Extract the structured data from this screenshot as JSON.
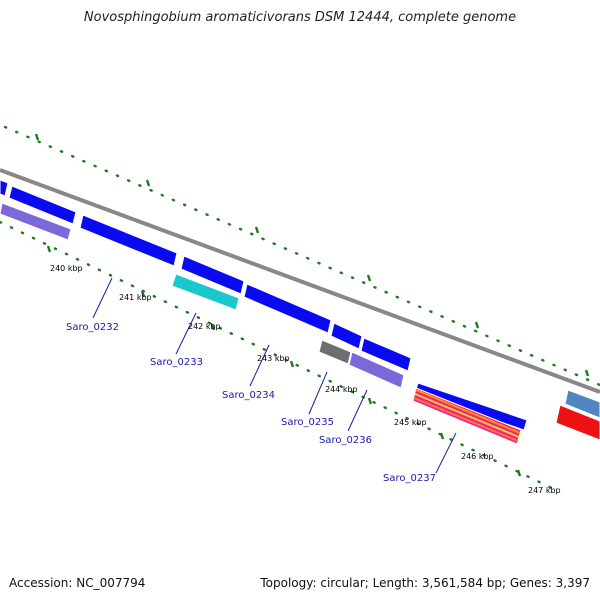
{
  "title": "Novosphingobium aromaticivorans DSM 12444, complete genome",
  "footer": {
    "accession": "Accession: NC_007794",
    "info": "Topology: circular; Length: 3,561,584 bp; Genes: 3,397"
  },
  "scale_ticks": [
    "240 kbp",
    "241 kbp",
    "242 kbp",
    "243 kbp",
    "244 kbp",
    "245 kbp",
    "246 kbp",
    "247 kbp"
  ],
  "gene_labels": [
    "Saro_0232",
    "Saro_0233",
    "Saro_0234",
    "Saro_0235",
    "Saro_0236",
    "Saro_0237"
  ],
  "colors": {
    "cds_blue": "#0a0af0",
    "cog_purple": "#7b68d9",
    "cog_cyan": "#19c8cc",
    "cog_gray": "#6e6e6e",
    "cog_red": "#ee1111",
    "cog_steel": "#4f86c0",
    "backbone": "#888888",
    "tick_green": "#1e7a1e",
    "label_blue": "#1a1aa8"
  }
}
